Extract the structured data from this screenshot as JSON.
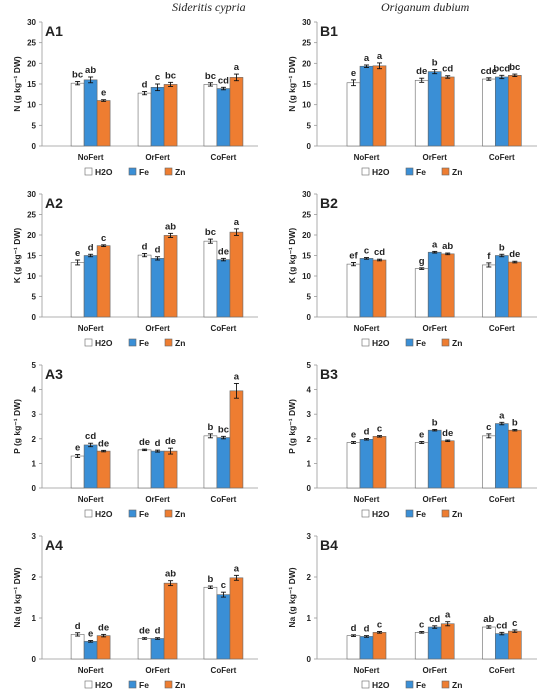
{
  "columns": {
    "left_title": "Sideritis cypria",
    "right_title": "Origanum dubium"
  },
  "legend": [
    {
      "name": "H2O",
      "color": "#ffffff"
    },
    {
      "name": "Fe",
      "color": "#3a8fd6"
    },
    {
      "name": "Zn",
      "color": "#ee7d31"
    }
  ],
  "chart_data": [
    {
      "type": "bar",
      "panel": "A1",
      "ylabel": "N (g kg⁻¹ DW)",
      "ylim": [
        0,
        30
      ],
      "yticks": [
        0,
        5,
        10,
        15,
        20,
        25,
        30
      ],
      "categories": [
        "NoFert",
        "OrFert",
        "CoFert"
      ],
      "series": [
        {
          "name": "H2O",
          "values": [
            15.2,
            12.8,
            14.9
          ],
          "errors": [
            0.4,
            0.4,
            0.4
          ],
          "letters": [
            "bc",
            "d",
            "bc"
          ]
        },
        {
          "name": "Fe",
          "values": [
            16.0,
            14.2,
            13.9
          ],
          "errors": [
            0.7,
            0.8,
            0.3
          ],
          "letters": [
            "ab",
            "c",
            "cd"
          ]
        },
        {
          "name": "Zn",
          "values": [
            11.0,
            14.9,
            16.6
          ],
          "errors": [
            0.2,
            0.5,
            0.8
          ],
          "letters": [
            "e",
            "bc",
            "a"
          ]
        }
      ]
    },
    {
      "type": "bar",
      "panel": "B1",
      "ylabel": "N (g kg⁻¹ DW)",
      "ylim": [
        0,
        30
      ],
      "yticks": [
        0,
        5,
        10,
        15,
        20,
        25,
        30
      ],
      "categories": [
        "NoFert",
        "OrFert",
        "CoFert"
      ],
      "series": [
        {
          "name": "H2O",
          "values": [
            15.3,
            15.9,
            16.2
          ],
          "errors": [
            0.7,
            0.5,
            0.3
          ],
          "letters": [
            "e",
            "de",
            "cde"
          ]
        },
        {
          "name": "Fe",
          "values": [
            19.3,
            18.0,
            16.7
          ],
          "errors": [
            0.3,
            0.5,
            0.4
          ],
          "letters": [
            "a",
            "b",
            "bcd"
          ]
        },
        {
          "name": "Zn",
          "values": [
            19.4,
            16.7,
            17.1
          ],
          "errors": [
            0.7,
            0.3,
            0.3
          ],
          "letters": [
            "a",
            "cd",
            "bc"
          ]
        }
      ]
    },
    {
      "type": "bar",
      "panel": "A2",
      "ylabel": "K (g kg⁻¹ DW)",
      "ylim": [
        0,
        30
      ],
      "yticks": [
        0,
        5,
        10,
        15,
        20,
        25,
        30
      ],
      "categories": [
        "NoFert",
        "OrFert",
        "CoFert"
      ],
      "series": [
        {
          "name": "H2O",
          "values": [
            13.3,
            15.1,
            18.5
          ],
          "errors": [
            0.6,
            0.4,
            0.5
          ],
          "letters": [
            "e",
            "d",
            "bc"
          ]
        },
        {
          "name": "Fe",
          "values": [
            15.0,
            14.3,
            14.0
          ],
          "errors": [
            0.3,
            0.4,
            0.3
          ],
          "letters": [
            "d",
            "d",
            "de"
          ]
        },
        {
          "name": "Zn",
          "values": [
            17.4,
            19.9,
            20.7
          ],
          "errors": [
            0.2,
            0.5,
            0.8
          ],
          "letters": [
            "c",
            "ab",
            "a"
          ]
        }
      ]
    },
    {
      "type": "bar",
      "panel": "B2",
      "ylabel": "K (g kg⁻¹ DW)",
      "ylim": [
        0,
        30
      ],
      "yticks": [
        0,
        5,
        10,
        15,
        20,
        25,
        30
      ],
      "categories": [
        "NoFert",
        "OrFert",
        "CoFert"
      ],
      "series": [
        {
          "name": "H2O",
          "values": [
            12.9,
            11.8,
            12.7
          ],
          "errors": [
            0.4,
            0.2,
            0.5
          ],
          "letters": [
            "ef",
            "g",
            "f"
          ]
        },
        {
          "name": "Fe",
          "values": [
            14.3,
            15.8,
            15.0
          ],
          "errors": [
            0.2,
            0.2,
            0.3
          ],
          "letters": [
            "c",
            "a",
            "b"
          ]
        },
        {
          "name": "Zn",
          "values": [
            13.9,
            15.4,
            13.4
          ],
          "errors": [
            0.2,
            0.2,
            0.2
          ],
          "letters": [
            "cd",
            "ab",
            "de"
          ]
        }
      ]
    },
    {
      "type": "bar",
      "panel": "A3",
      "ylabel": "P (g kg⁻¹ DW)",
      "ylim": [
        0,
        5
      ],
      "yticks": [
        0,
        1,
        2,
        3,
        4,
        5
      ],
      "categories": [
        "NoFert",
        "OrFert",
        "CoFert"
      ],
      "series": [
        {
          "name": "H2O",
          "values": [
            1.3,
            1.55,
            2.12
          ],
          "errors": [
            0.06,
            0.03,
            0.08
          ],
          "letters": [
            "e",
            "de",
            "b"
          ]
        },
        {
          "name": "Fe",
          "values": [
            1.75,
            1.5,
            2.05
          ],
          "errors": [
            0.07,
            0.04,
            0.05
          ],
          "letters": [
            "cd",
            "d",
            "bc"
          ]
        },
        {
          "name": "Zn",
          "values": [
            1.5,
            1.5,
            3.95
          ],
          "errors": [
            0.03,
            0.12,
            0.3
          ],
          "letters": [
            "de",
            "de",
            "a"
          ]
        }
      ]
    },
    {
      "type": "bar",
      "panel": "B3",
      "ylabel": "P (g kg⁻¹ DW)",
      "ylim": [
        0,
        5
      ],
      "yticks": [
        0,
        1,
        2,
        3,
        4,
        5
      ],
      "categories": [
        "NoFert",
        "OrFert",
        "CoFert"
      ],
      "series": [
        {
          "name": "H2O",
          "values": [
            1.85,
            1.85,
            2.12
          ],
          "errors": [
            0.04,
            0.04,
            0.08
          ],
          "letters": [
            "e",
            "e",
            "c"
          ]
        },
        {
          "name": "Fe",
          "values": [
            1.98,
            2.35,
            2.62
          ],
          "errors": [
            0.03,
            0.03,
            0.05
          ],
          "letters": [
            "d",
            "b",
            "a"
          ]
        },
        {
          "name": "Zn",
          "values": [
            2.1,
            1.92,
            2.35
          ],
          "errors": [
            0.03,
            0.03,
            0.03
          ],
          "letters": [
            "c",
            "de",
            "b"
          ]
        }
      ]
    },
    {
      "type": "bar",
      "panel": "A4",
      "ylabel": "Na (g kg⁻¹ DW)",
      "ylim": [
        0,
        3
      ],
      "yticks": [
        0,
        1,
        2,
        3
      ],
      "categories": [
        "NoFert",
        "OrFert",
        "CoFert"
      ],
      "series": [
        {
          "name": "H2O",
          "values": [
            0.6,
            0.5,
            1.75
          ],
          "errors": [
            0.04,
            0.02,
            0.03
          ],
          "letters": [
            "d",
            "de",
            "b"
          ]
        },
        {
          "name": "Fe",
          "values": [
            0.43,
            0.5,
            1.57
          ],
          "errors": [
            0.02,
            0.02,
            0.06
          ],
          "letters": [
            "e",
            "d",
            "c"
          ]
        },
        {
          "name": "Zn",
          "values": [
            0.57,
            1.85,
            1.98
          ],
          "errors": [
            0.03,
            0.06,
            0.06
          ],
          "letters": [
            "de",
            "ab",
            "a"
          ]
        }
      ]
    },
    {
      "type": "bar",
      "panel": "B4",
      "ylabel": "Na (g kg⁻¹ DW)",
      "ylim": [
        0,
        3
      ],
      "yticks": [
        0,
        1,
        2,
        3
      ],
      "categories": [
        "NoFert",
        "OrFert",
        "CoFert"
      ],
      "series": [
        {
          "name": "H2O",
          "values": [
            0.57,
            0.65,
            0.78
          ],
          "errors": [
            0.02,
            0.02,
            0.03
          ],
          "letters": [
            "d",
            "c",
            "ab"
          ]
        },
        {
          "name": "Fe",
          "values": [
            0.55,
            0.78,
            0.62
          ],
          "errors": [
            0.02,
            0.03,
            0.03
          ],
          "letters": [
            "d",
            "cd",
            "cd"
          ]
        },
        {
          "name": "Zn",
          "values": [
            0.65,
            0.86,
            0.68
          ],
          "errors": [
            0.02,
            0.05,
            0.03
          ],
          "letters": [
            "c",
            "a",
            "c"
          ]
        }
      ]
    }
  ]
}
